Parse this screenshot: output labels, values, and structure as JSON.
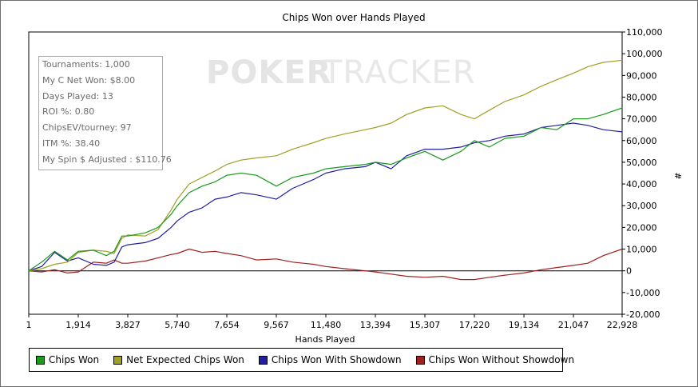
{
  "chart_data": {
    "type": "line",
    "title": "Chips Won over Hands Played",
    "xlabel": "Hands Played",
    "ylabel": "#",
    "xlim": [
      1,
      22928
    ],
    "ylim": [
      -20000,
      110000
    ],
    "x_ticks": [
      "1",
      "1,914",
      "3,827",
      "5,740",
      "7,654",
      "9,567",
      "11,480",
      "13,394",
      "15,307",
      "17,220",
      "19,134",
      "21,047",
      "22,928"
    ],
    "y_ticks": [
      "110,000",
      "100,000",
      "90,000",
      "80,000",
      "70,000",
      "60,000",
      "50,000",
      "40,000",
      "30,000",
      "20,000",
      "10,000",
      "0",
      "-10,000",
      "-20,000"
    ],
    "y_axis_side": "right",
    "legend_position": "bottom",
    "x": [
      1,
      500,
      1000,
      1500,
      1914,
      2500,
      3000,
      3300,
      3600,
      3827,
      4500,
      5000,
      5500,
      5740,
      6200,
      6700,
      7200,
      7654,
      8200,
      8800,
      9567,
      10200,
      11000,
      11480,
      12200,
      13000,
      13394,
      14000,
      14600,
      15307,
      16000,
      16700,
      17220,
      17800,
      18400,
      19134,
      19800,
      20400,
      21047,
      21600,
      22200,
      22928
    ],
    "series": [
      {
        "name": "Chips Won",
        "color": "#1a9a1a",
        "values": [
          0,
          4000,
          9000,
          5000,
          9000,
          9500,
          7000,
          9000,
          16000,
          16000,
          17500,
          20000,
          26000,
          30000,
          36000,
          39000,
          41000,
          44000,
          45000,
          44000,
          39000,
          43000,
          45000,
          47000,
          48000,
          49000,
          50000,
          49000,
          52000,
          55000,
          51000,
          55000,
          60000,
          57000,
          61000,
          62000,
          66000,
          65000,
          70000,
          70000,
          72000,
          75000
        ]
      },
      {
        "name": "Net Expected Chips Won",
        "color": "#a0a024",
        "values": [
          0,
          1000,
          3000,
          4000,
          8500,
          9500,
          9000,
          8000,
          15000,
          16500,
          16000,
          19000,
          28000,
          33000,
          40000,
          43000,
          46000,
          49000,
          51000,
          52000,
          53000,
          56000,
          59000,
          61000,
          63000,
          65000,
          66000,
          68000,
          72000,
          75000,
          76000,
          72000,
          70000,
          74000,
          78000,
          81000,
          85000,
          88000,
          91000,
          94000,
          96000,
          97000
        ]
      },
      {
        "name": "Chips Won With Showdown",
        "color": "#2020a0",
        "values": [
          0,
          2000,
          8500,
          4500,
          6000,
          3000,
          2500,
          4000,
          11000,
          12000,
          13000,
          15000,
          20000,
          23000,
          27000,
          29000,
          33000,
          34000,
          36000,
          35000,
          33000,
          38000,
          42000,
          45000,
          47000,
          48000,
          50000,
          47000,
          53000,
          56000,
          56000,
          57000,
          59000,
          60000,
          62000,
          63000,
          66000,
          67000,
          68000,
          67000,
          65000,
          64000
        ]
      },
      {
        "name": "Chips Won Without Showdown",
        "color": "#a02020",
        "values": [
          0,
          -500,
          500,
          -1000,
          -500,
          4000,
          3500,
          5000,
          3500,
          3500,
          4500,
          6000,
          7500,
          8000,
          10000,
          8500,
          9000,
          8000,
          7000,
          5000,
          5500,
          4000,
          3000,
          2000,
          1000,
          0,
          -500,
          -1500,
          -2500,
          -3000,
          -2500,
          -4000,
          -4000,
          -3000,
          -2000,
          -1000,
          500,
          1500,
          2500,
          3500,
          7000,
          10000
        ]
      }
    ]
  },
  "stats": [
    "Tournaments: 1,000",
    "My C Net Won: $8.00",
    "Days Played: 13",
    "ROI %: 0.80",
    "ChipsEV/tourney: 97",
    "ITM %: 38.40",
    "My Spin $ Adjusted : $110.76"
  ],
  "watermark": {
    "part1": "POKER",
    "part2": "TRACKER"
  }
}
